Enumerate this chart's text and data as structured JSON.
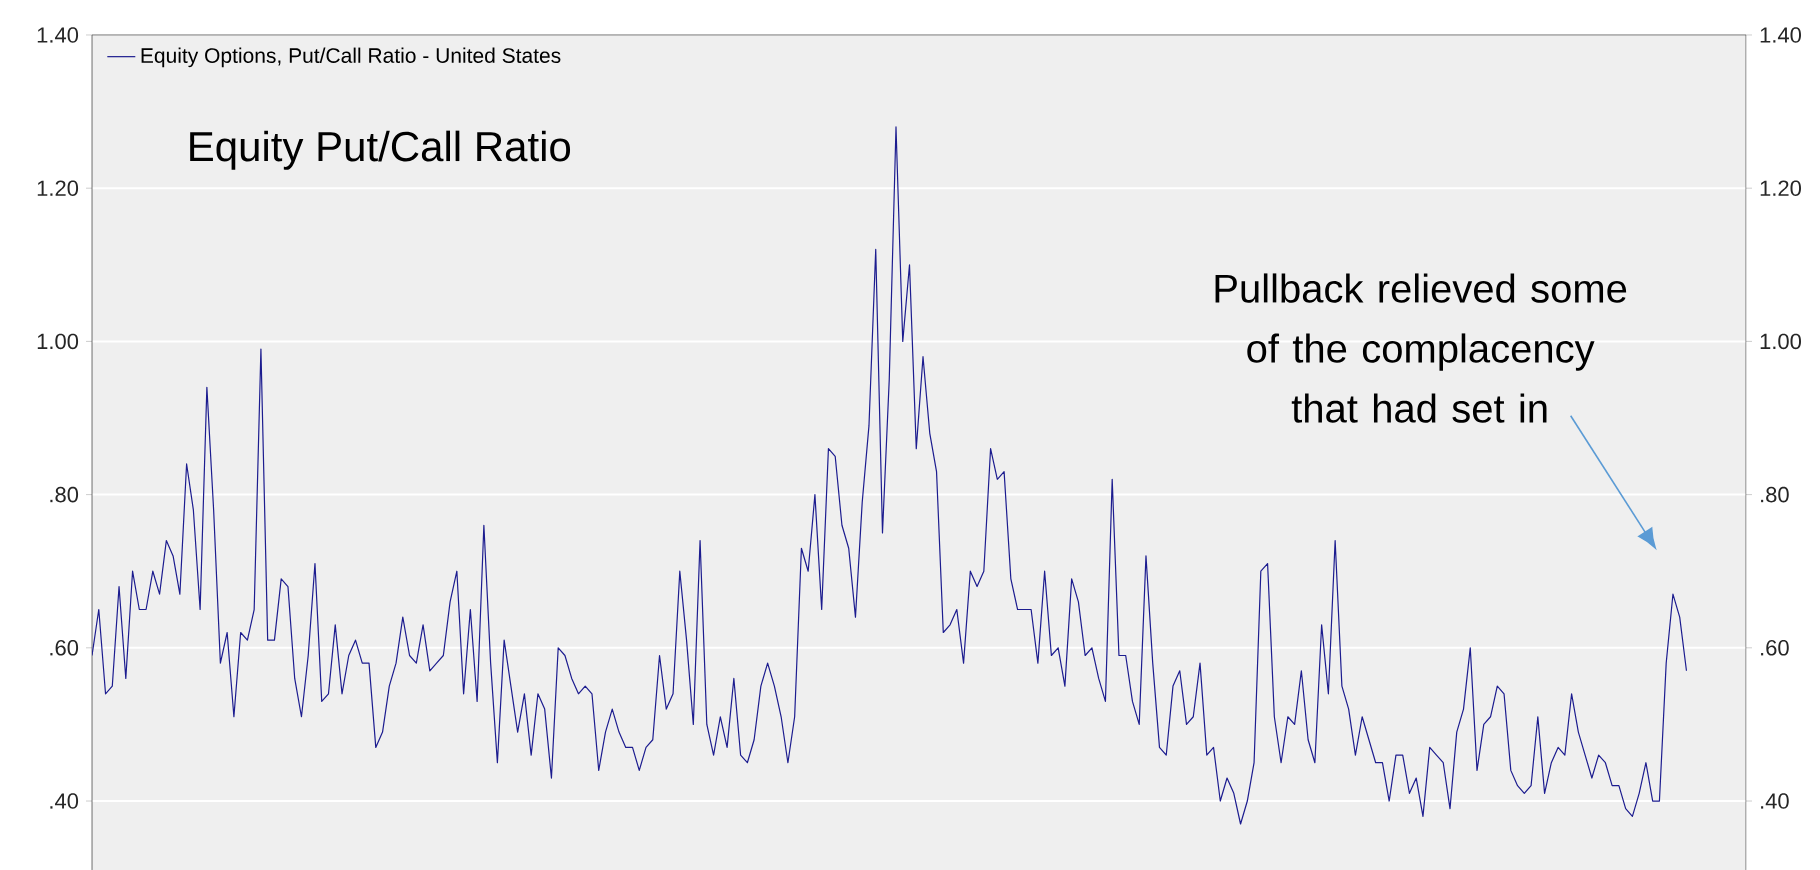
{
  "chart_data": {
    "type": "line",
    "title": "Equity Put/Call Ratio",
    "annotations": [
      "Pullback relieved some of the complacency that had set in"
    ],
    "categories": [
      null,
      null,
      null,
      null,
      null,
      null,
      null,
      null,
      null,
      null,
      null,
      null,
      null,
      null,
      null,
      null,
      null,
      null,
      null,
      null,
      null,
      null,
      null,
      null,
      null,
      null,
      null,
      null,
      null,
      null,
      null,
      null,
      null,
      null,
      null,
      null,
      null,
      null,
      null,
      null,
      null,
      null,
      null,
      null,
      null,
      null,
      null,
      null,
      null,
      null,
      null,
      null,
      null,
      null,
      null,
      null,
      null,
      null,
      null,
      null,
      null,
      null,
      null,
      null,
      null,
      null,
      null,
      null,
      null,
      null,
      null,
      null,
      null,
      null,
      null,
      null,
      null,
      null,
      null,
      null,
      null,
      null,
      null,
      null,
      null,
      null,
      null,
      null,
      null,
      null,
      null,
      null,
      null,
      null,
      null,
      null,
      null,
      null,
      null,
      null,
      null,
      null,
      null,
      null,
      null,
      null,
      null,
      null,
      null,
      null,
      null,
      null,
      null,
      null,
      null,
      null,
      null,
      null,
      null,
      null,
      null,
      null,
      null,
      null,
      null,
      null,
      null,
      null,
      null,
      null,
      null,
      null,
      null,
      null,
      null,
      null,
      null,
      null,
      null,
      null,
      null,
      null,
      null,
      null,
      null,
      null,
      null,
      null,
      null,
      null,
      null,
      null,
      null,
      null,
      null,
      null,
      null,
      null,
      null,
      null,
      null,
      null,
      null,
      null,
      null,
      null,
      null,
      null,
      null,
      null,
      null,
      null,
      null,
      null,
      null,
      null,
      null,
      null,
      null,
      null,
      null,
      null,
      null,
      null,
      null,
      null,
      null,
      null,
      null,
      null,
      null,
      null,
      null,
      null,
      null,
      null,
      null,
      null,
      null,
      null,
      null,
      null,
      null,
      null,
      null,
      null,
      null,
      null,
      null,
      null,
      null,
      null,
      null,
      null,
      null,
      null,
      null,
      null,
      null,
      null,
      null,
      null,
      null,
      null,
      null,
      null,
      null,
      null,
      null,
      null,
      null,
      null,
      null,
      null,
      null,
      null,
      null
    ],
    "series": [
      {
        "name": "Equity Options, Put/Call Ratio - United States",
        "color": "#1c1c8f",
        "values": [
          0.59,
          0.65,
          0.54,
          0.55,
          0.68,
          0.56,
          0.7,
          0.65,
          0.65,
          0.7,
          0.67,
          0.74,
          0.72,
          0.67,
          0.84,
          0.78,
          0.65,
          0.94,
          0.78,
          0.58,
          0.62,
          0.51,
          0.62,
          0.61,
          0.65,
          0.99,
          0.61,
          0.61,
          0.69,
          0.68,
          0.56,
          0.51,
          0.59,
          0.71,
          0.53,
          0.54,
          0.63,
          0.54,
          0.59,
          0.61,
          0.58,
          0.58,
          0.47,
          0.49,
          0.55,
          0.58,
          0.64,
          0.59,
          0.58,
          0.63,
          0.57,
          0.58,
          0.59,
          0.66,
          0.7,
          0.54,
          0.65,
          0.53,
          0.76,
          0.58,
          0.45,
          0.61,
          0.55,
          0.49,
          0.54,
          0.46,
          0.54,
          0.52,
          0.43,
          0.6,
          0.59,
          0.56,
          0.54,
          0.55,
          0.54,
          0.44,
          0.49,
          0.52,
          0.49,
          0.47,
          0.47,
          0.44,
          0.47,
          0.48,
          0.59,
          0.52,
          0.54,
          0.7,
          0.61,
          0.5,
          0.74,
          0.5,
          0.46,
          0.51,
          0.47,
          0.56,
          0.46,
          0.45,
          0.48,
          0.55,
          0.58,
          0.55,
          0.51,
          0.45,
          0.51,
          0.73,
          0.7,
          0.8,
          0.65,
          0.86,
          0.85,
          0.76,
          0.73,
          0.64,
          0.79,
          0.89,
          1.12,
          0.75,
          0.95,
          1.28,
          1.0,
          1.1,
          0.86,
          0.98,
          0.88,
          0.83,
          0.62,
          0.63,
          0.65,
          0.58,
          0.7,
          0.68,
          0.7,
          0.86,
          0.82,
          0.83,
          0.69,
          0.65,
          0.65,
          0.65,
          0.58,
          0.7,
          0.59,
          0.6,
          0.55,
          0.69,
          0.66,
          0.59,
          0.6,
          0.56,
          0.53,
          0.82,
          0.59,
          0.59,
          0.53,
          0.5,
          0.72,
          0.58,
          0.47,
          0.46,
          0.55,
          0.57,
          0.5,
          0.51,
          0.58,
          0.46,
          0.47,
          0.4,
          0.43,
          0.41,
          0.37,
          0.4,
          0.45,
          0.7,
          0.71,
          0.51,
          0.45,
          0.51,
          0.5,
          0.57,
          0.48,
          0.45,
          0.63,
          0.54,
          0.74,
          0.55,
          0.52,
          0.46,
          0.51,
          0.48,
          0.45,
          0.45,
          0.4,
          0.46,
          0.46,
          0.41,
          0.43,
          0.38,
          0.47,
          0.46,
          0.45,
          0.39,
          0.49,
          0.52,
          0.6,
          0.44,
          0.5,
          0.51,
          0.55,
          0.54,
          0.44,
          0.42,
          0.41,
          0.42,
          0.51,
          0.41,
          0.45,
          0.47,
          0.46,
          0.54,
          0.49,
          0.46,
          0.43,
          0.46,
          0.45,
          0.42,
          0.42,
          0.39,
          0.38,
          0.41,
          0.45,
          0.4,
          0.4,
          0.58,
          0.67,
          0.64,
          0.57
        ]
      }
    ],
    "ylim": [
      0.31,
      1.4
    ],
    "yticks": [
      {
        "value": 0.4,
        "label": ".40"
      },
      {
        "value": 0.6,
        "label": ".60"
      },
      {
        "value": 0.8,
        "label": ".80"
      },
      {
        "value": 1.0,
        "label": "1.00"
      },
      {
        "value": 1.2,
        "label": "1.20"
      },
      {
        "value": 1.4,
        "label": "1.40"
      }
    ],
    "y2lim": [
      0.31,
      1.4
    ],
    "y2ticks": [
      {
        "value": 0.4,
        "label": ".40"
      },
      {
        "value": 0.6,
        "label": ".60"
      },
      {
        "value": 0.8,
        "label": ".80"
      },
      {
        "value": 1.0,
        "label": "1.00"
      },
      {
        "value": 1.2,
        "label": "1.20"
      },
      {
        "value": 1.4,
        "label": "1.40"
      }
    ],
    "grid": "y",
    "legend": "top left",
    "tick_labels": "y"
  }
}
